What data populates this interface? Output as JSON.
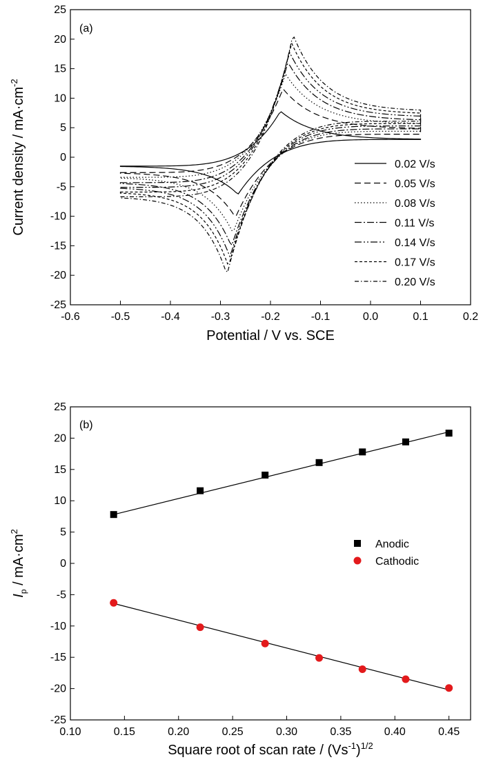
{
  "chart_data": [
    {
      "type": "line",
      "panel_label": "(a)",
      "xlabel": "Potential / V vs. SCE",
      "ylabel_main": "Current density / mA·cm",
      "ylabel_sup": "-2",
      "xlim": [
        -0.6,
        0.2
      ],
      "ylim": [
        -25,
        25
      ],
      "x_ticks": [
        -0.6,
        -0.5,
        -0.4,
        -0.3,
        -0.2,
        -0.1,
        0.0,
        0.1,
        0.2
      ],
      "x_tick_labels": [
        "-0.6",
        "-0.5",
        "-0.4",
        "-0.3",
        "-0.2",
        "-0.1",
        "0.0",
        "0.1",
        "0.2"
      ],
      "y_ticks": [
        -25,
        -20,
        -15,
        -10,
        -5,
        0,
        5,
        10,
        15,
        20,
        25
      ],
      "y_tick_labels": [
        "-25",
        "-20",
        "-15",
        "-10",
        "-5",
        "0",
        "5",
        "10",
        "15",
        "20",
        "25"
      ],
      "grid": false,
      "legend_position": "bottom-right",
      "series": [
        {
          "name": "0.02 V/s",
          "scan_rate": 0.02,
          "anodic_peak": {
            "x": -0.18,
            "y": 7.8
          },
          "cathodic_peak": {
            "x": -0.265,
            "y": -6.3
          },
          "start_current": -1.5,
          "end_current_anodic": 3.0,
          "end_current_cathodic": 3.0,
          "dash": "none"
        },
        {
          "name": "0.05 V/s",
          "scan_rate": 0.05,
          "anodic_peak": {
            "x": -0.175,
            "y": 11.6
          },
          "cathodic_peak": {
            "x": -0.27,
            "y": -10.2
          },
          "start_current": -2.6,
          "end_current_anodic": 4.8,
          "end_current_cathodic": 3.9,
          "dash": "9,5"
        },
        {
          "name": "0.08 V/s",
          "scan_rate": 0.08,
          "anodic_peak": {
            "x": -0.17,
            "y": 14.1
          },
          "cathodic_peak": {
            "x": -0.275,
            "y": -12.8
          },
          "start_current": -3.4,
          "end_current_anodic": 5.6,
          "end_current_cathodic": 4.4,
          "dash": "1.5,3"
        },
        {
          "name": "0.11 V/s",
          "scan_rate": 0.11,
          "anodic_peak": {
            "x": -0.165,
            "y": 16.1
          },
          "cathodic_peak": {
            "x": -0.278,
            "y": -15.1
          },
          "start_current": -4.3,
          "end_current_anodic": 6.2,
          "end_current_cathodic": 4.8,
          "dash": "10,3,2,3"
        },
        {
          "name": "0.14 V/s",
          "scan_rate": 0.14,
          "anodic_peak": {
            "x": -0.162,
            "y": 17.8
          },
          "cathodic_peak": {
            "x": -0.281,
            "y": -16.9
          },
          "start_current": -5.1,
          "end_current_anodic": 6.8,
          "end_current_cathodic": 5.3,
          "dash": "10,3,2,3,2,3"
        },
        {
          "name": "0.17 V/s",
          "scan_rate": 0.17,
          "anodic_peak": {
            "x": -0.158,
            "y": 19.4
          },
          "cathodic_peak": {
            "x": -0.284,
            "y": -18.5
          },
          "start_current": -5.9,
          "end_current_anodic": 7.3,
          "end_current_cathodic": 5.7,
          "dash": "4,3"
        },
        {
          "name": "0.20 V/s",
          "scan_rate": 0.2,
          "anodic_peak": {
            "x": -0.155,
            "y": 20.8
          },
          "cathodic_peak": {
            "x": -0.287,
            "y": -19.9
          },
          "start_current": -6.7,
          "end_current_anodic": 7.8,
          "end_current_cathodic": 6.1,
          "dash": "6,3,1.5,3"
        }
      ]
    },
    {
      "type": "scatter",
      "panel_label": "(b)",
      "xlabel_main": "Square root of scan rate / (Vs",
      "xlabel_sup1": "-1",
      "xlabel_close": ")",
      "xlabel_sup2": "1/2",
      "ylabel_italic": "I",
      "ylabel_sub": "p",
      "ylabel_main": " / mA·cm",
      "ylabel_sup": "2",
      "xlim": [
        0.1,
        0.47
      ],
      "ylim": [
        -25,
        25
      ],
      "x_ticks": [
        0.1,
        0.15,
        0.2,
        0.25,
        0.3,
        0.35,
        0.4,
        0.45
      ],
      "x_tick_labels": [
        "0.10",
        "0.15",
        "0.20",
        "0.25",
        "0.30",
        "0.35",
        "0.40",
        "0.45"
      ],
      "y_ticks": [
        -25,
        -20,
        -15,
        -10,
        -5,
        0,
        5,
        10,
        15,
        20,
        25
      ],
      "y_tick_labels": [
        "-25",
        "-20",
        "-15",
        "-10",
        "-5",
        "0",
        "5",
        "10",
        "15",
        "20",
        "25"
      ],
      "grid": false,
      "legend_position": "center-right",
      "series": [
        {
          "name": "Anodic",
          "marker": "square",
          "color": "#000000",
          "x": [
            0.14,
            0.22,
            0.28,
            0.33,
            0.37,
            0.41,
            0.45
          ],
          "y": [
            7.8,
            11.6,
            14.1,
            16.1,
            17.8,
            19.4,
            20.8
          ],
          "fit": {
            "x": [
              0.14,
              0.45
            ],
            "y": [
              7.8,
              21.0
            ]
          }
        },
        {
          "name": "Cathodic",
          "marker": "circle",
          "color": "#e31a1c",
          "x": [
            0.14,
            0.22,
            0.28,
            0.33,
            0.37,
            0.41,
            0.45
          ],
          "y": [
            -6.3,
            -10.2,
            -12.8,
            -15.1,
            -16.9,
            -18.5,
            -19.9
          ],
          "fit": {
            "x": [
              0.14,
              0.45
            ],
            "y": [
              -6.4,
              -20.2
            ]
          }
        }
      ]
    }
  ]
}
